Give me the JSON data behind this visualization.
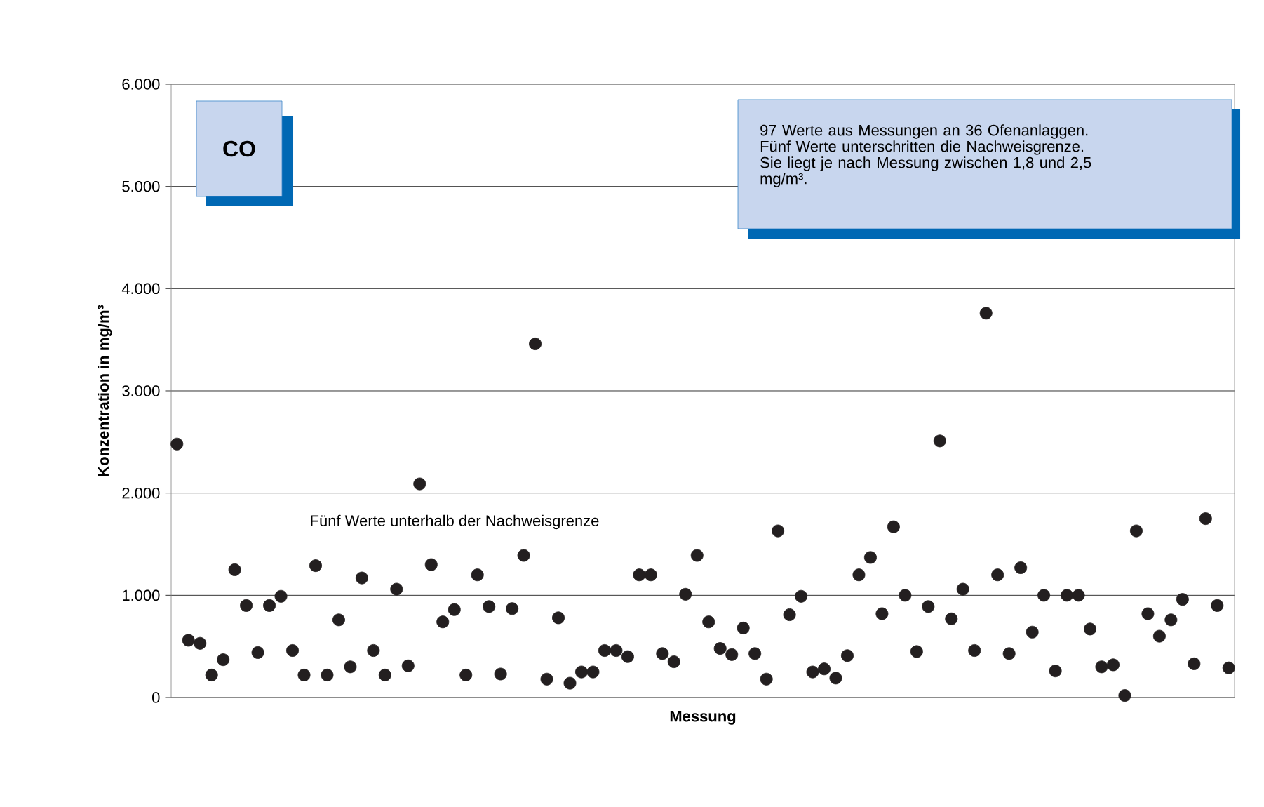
{
  "chart_data": {
    "type": "scatter",
    "title": "CO",
    "ylabel": "Konzentration in mg/m³",
    "xlabel": "Messung",
    "annotations": [
      "97 Werte aus Messungen an 36 Ofenanlaggen. Fünf Werte unterschritten die Nachweisgrenze. Sie liegt je nach Messung zwischen 1,8 und 2,5 mg/m³.",
      "Fünf Werte unterhalb der Nachweisgrenze"
    ],
    "categories": [
      null,
      null,
      null,
      null,
      null,
      null,
      null,
      null,
      null,
      null,
      null,
      null,
      null,
      null,
      null,
      null,
      null,
      null,
      null,
      null,
      null,
      null,
      null,
      null,
      null,
      null,
      null,
      null,
      null,
      null,
      null,
      null,
      null,
      null,
      null,
      null,
      null,
      null,
      null,
      null,
      null,
      null,
      null,
      null,
      null,
      null,
      null,
      null,
      null,
      null,
      null,
      null,
      null,
      null,
      null,
      null,
      null,
      null,
      null,
      null,
      null,
      null,
      null,
      null,
      null,
      null,
      null,
      null,
      null,
      null,
      null,
      null,
      null,
      null,
      null,
      null,
      null,
      null,
      null,
      null,
      null,
      null,
      null,
      null,
      null,
      null,
      null,
      null,
      null,
      null,
      null,
      null
    ],
    "values": [
      2480,
      560,
      530,
      220,
      370,
      1250,
      900,
      440,
      900,
      990,
      460,
      220,
      1290,
      220,
      760,
      300,
      1170,
      460,
      220,
      1060,
      310,
      2090,
      1300,
      740,
      860,
      220,
      1200,
      890,
      230,
      870,
      1390,
      3460,
      180,
      780,
      140,
      250,
      250,
      460,
      460,
      400,
      1200,
      1200,
      430,
      350,
      1010,
      1390,
      740,
      480,
      420,
      680,
      430,
      180,
      1630,
      810,
      990,
      250,
      280,
      190,
      410,
      1200,
      1370,
      820,
      1670,
      1000,
      450,
      890,
      2510,
      770,
      1060,
      460,
      3760,
      1200,
      430,
      1270,
      640,
      1000,
      260,
      1000,
      1000,
      670,
      300,
      320,
      20,
      1630,
      820,
      600,
      760,
      960,
      330,
      1750,
      900,
      290
    ],
    "color": "#231f20",
    "marker": "circle",
    "grid": "y",
    "ylim": [
      0,
      6000
    ],
    "yticks": [
      {
        "value": 0,
        "label": "0"
      },
      {
        "value": 1000,
        "label": "1.000"
      },
      {
        "value": 2000,
        "label": "2.000"
      },
      {
        "value": 3000,
        "label": "3.000"
      },
      {
        "value": 4000,
        "label": "4.000"
      },
      {
        "value": 5000,
        "label": "5.000"
      },
      {
        "value": 6000,
        "label": "6.000"
      }
    ]
  }
}
